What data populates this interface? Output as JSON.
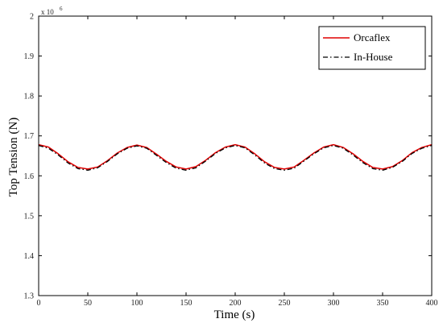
{
  "chart_data": {
    "type": "line",
    "title": "",
    "xlabel": "Time (s)",
    "ylabel": "Top Tension (N)",
    "y_multiplier_label": "x 10",
    "y_multiplier_exponent": "6",
    "xlim": [
      0,
      400
    ],
    "ylim": [
      1.3,
      2.0
    ],
    "xticks": [
      0,
      50,
      100,
      150,
      200,
      250,
      300,
      350,
      400
    ],
    "xtick_labels": [
      "0",
      "50",
      "100",
      "150",
      "200",
      "250",
      "300",
      "350",
      "400"
    ],
    "yticks": [
      1.3,
      1.4,
      1.5,
      1.6,
      1.7,
      1.8,
      1.9,
      2.0
    ],
    "ytick_labels": [
      "1.3",
      "1.4",
      "1.5",
      "1.6",
      "1.7",
      "1.8",
      "1.9",
      "2"
    ],
    "grid": false,
    "legend_position": "top-right",
    "series": [
      {
        "name": "Orcaflex",
        "color": "#e00000",
        "style": "solid",
        "x": [
          0,
          10,
          20,
          30,
          40,
          50,
          60,
          70,
          80,
          90,
          100,
          110,
          120,
          130,
          140,
          150,
          160,
          170,
          180,
          190,
          200,
          210,
          220,
          230,
          240,
          250,
          260,
          270,
          280,
          290,
          300,
          310,
          320,
          330,
          340,
          350,
          360,
          370,
          380,
          390,
          400
        ],
        "y": [
          1.678,
          1.672,
          1.655,
          1.635,
          1.621,
          1.617,
          1.622,
          1.638,
          1.657,
          1.671,
          1.677,
          1.671,
          1.654,
          1.636,
          1.622,
          1.617,
          1.623,
          1.639,
          1.658,
          1.672,
          1.678,
          1.672,
          1.655,
          1.635,
          1.621,
          1.617,
          1.622,
          1.639,
          1.657,
          1.672,
          1.678,
          1.671,
          1.655,
          1.636,
          1.621,
          1.617,
          1.623,
          1.638,
          1.658,
          1.671,
          1.678
        ]
      },
      {
        "name": "In-House",
        "color": "#000000",
        "style": "dashdot",
        "x": [
          0,
          10,
          20,
          30,
          40,
          50,
          60,
          70,
          80,
          90,
          100,
          110,
          120,
          130,
          140,
          150,
          160,
          170,
          180,
          190,
          200,
          210,
          220,
          230,
          240,
          250,
          260,
          270,
          280,
          290,
          300,
          310,
          320,
          330,
          340,
          350,
          360,
          370,
          380,
          390,
          400
        ],
        "y": [
          1.676,
          1.669,
          1.652,
          1.632,
          1.618,
          1.614,
          1.62,
          1.636,
          1.655,
          1.669,
          1.675,
          1.669,
          1.651,
          1.633,
          1.619,
          1.614,
          1.62,
          1.637,
          1.656,
          1.67,
          1.676,
          1.67,
          1.652,
          1.632,
          1.618,
          1.614,
          1.619,
          1.637,
          1.655,
          1.67,
          1.676,
          1.669,
          1.652,
          1.633,
          1.618,
          1.614,
          1.621,
          1.636,
          1.656,
          1.669,
          1.676
        ]
      }
    ]
  }
}
